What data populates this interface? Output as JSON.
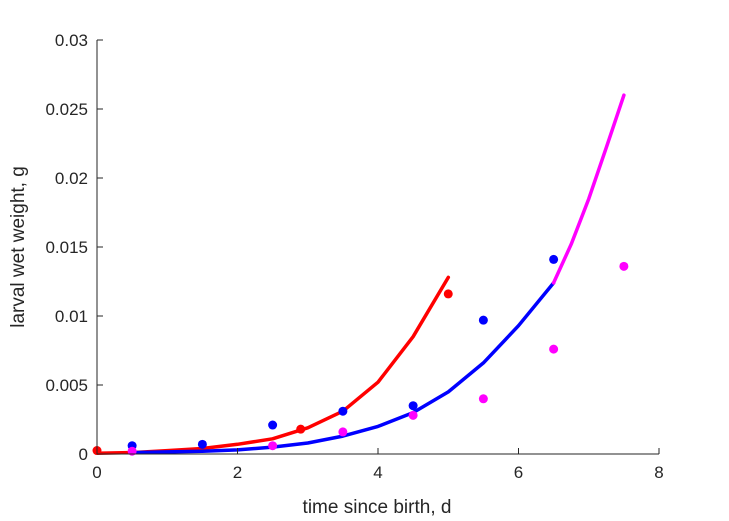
{
  "chart_data": {
    "type": "scatter",
    "title": "",
    "xlabel": "time since birth, d",
    "ylabel": "larval wet weight, g",
    "xlim": [
      0,
      8
    ],
    "ylim": [
      0,
      0.03
    ],
    "xticks": [
      0,
      2,
      4,
      6,
      8
    ],
    "yticks": [
      0,
      0.005,
      0.01,
      0.015,
      0.02,
      0.025,
      0.03
    ],
    "ytick_labels": [
      "0",
      "0.005",
      "0.01",
      "0.015",
      "0.02",
      "0.025",
      "0.03"
    ],
    "grid": false,
    "legend": "none",
    "series": [
      {
        "kind": "points",
        "color": "#ff0000",
        "x": [
          0,
          2.9,
          5.0
        ],
        "y": [
          0.00025,
          0.0018,
          0.0116
        ]
      },
      {
        "kind": "points",
        "color": "#0000ff",
        "x": [
          0.5,
          1.5,
          2.5,
          3.5,
          4.5,
          5.5,
          6.5
        ],
        "y": [
          0.0006,
          0.0007,
          0.0021,
          0.0031,
          0.0035,
          0.0097,
          0.0141
        ]
      },
      {
        "kind": "points",
        "color": "#ff00ff",
        "x": [
          0.5,
          2.5,
          3.5,
          4.5,
          5.5,
          6.5,
          7.5
        ],
        "y": [
          0.0002,
          0.0006,
          0.0016,
          0.0028,
          0.004,
          0.0076,
          0.0136
        ]
      },
      {
        "kind": "line",
        "color": "#ff0000",
        "x": [
          0,
          0.5,
          1.0,
          1.5,
          2.0,
          2.5,
          3.0,
          3.5,
          4.0,
          4.5,
          5.0
        ],
        "y": [
          5e-05,
          0.0001,
          0.00025,
          0.0004,
          0.0007,
          0.0011,
          0.0019,
          0.0031,
          0.0052,
          0.0085,
          0.0128
        ]
      },
      {
        "kind": "line",
        "color": "#0000ff",
        "x": [
          0.5,
          1.0,
          1.5,
          2.0,
          2.5,
          3.0,
          3.5,
          4.0,
          4.5,
          5.0,
          5.5,
          6.0,
          6.5
        ],
        "y": [
          0.0001,
          0.00015,
          0.0002,
          0.0003,
          0.0005,
          0.0008,
          0.0013,
          0.002,
          0.003,
          0.0045,
          0.0066,
          0.0093,
          0.0124
        ]
      },
      {
        "kind": "line",
        "color": "#ff00ff",
        "x": [
          6.5,
          6.75,
          7.0,
          7.25,
          7.5
        ],
        "y": [
          0.0124,
          0.0152,
          0.0185,
          0.0222,
          0.026
        ]
      }
    ]
  }
}
